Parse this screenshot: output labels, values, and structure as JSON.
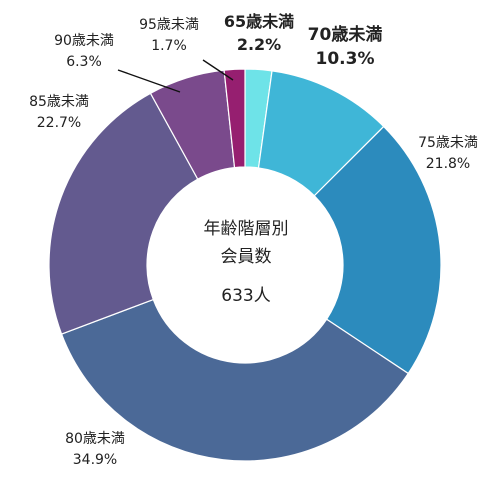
{
  "chart_data": {
    "type": "donut",
    "center_text": [
      "年齢階層別",
      "会員数",
      "633人"
    ],
    "total": 633,
    "slices": [
      {
        "label": "65歳未満",
        "percent": 2.2,
        "color": "#6ee3e8"
      },
      {
        "label": "70歳未満",
        "percent": 10.3,
        "color": "#3fb6d7"
      },
      {
        "label": "75歳未満",
        "percent": 21.8,
        "color": "#2c8bbd"
      },
      {
        "label": "80歳未満",
        "percent": 34.9,
        "color": "#4b6997"
      },
      {
        "label": "85歳未満",
        "percent": 22.7,
        "color": "#635a8f"
      },
      {
        "label": "90歳未満",
        "percent": 6.3,
        "color": "#7a4a8c"
      },
      {
        "label": "95歳未満",
        "percent": 1.7,
        "color": "#961f70"
      }
    ],
    "percent_labels": [
      "2.2%",
      "10.3%",
      "21.8%",
      "34.9%",
      "22.7%",
      "6.3%",
      "1.7%"
    ]
  }
}
